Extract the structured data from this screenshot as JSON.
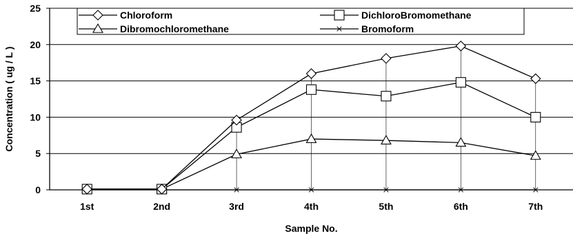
{
  "chart_data": {
    "type": "line",
    "title": "",
    "xlabel": "Sample No.",
    "ylabel": "Concentration ( ug / L )",
    "categories": [
      "1st",
      "2nd",
      "3rd",
      "4th",
      "5th",
      "6th",
      "7th"
    ],
    "ylim": [
      0,
      25
    ],
    "yticks": [
      0,
      5,
      10,
      15,
      20,
      25
    ],
    "grid": "horizontal",
    "legend_position": "top",
    "series": [
      {
        "name": "Chloroform",
        "marker": "diamond",
        "values": [
          0.1,
          0.1,
          9.6,
          16.0,
          18.1,
          19.8,
          15.3
        ]
      },
      {
        "name": "DichloroBromomethane",
        "marker": "square",
        "values": [
          0.1,
          0.1,
          8.6,
          13.8,
          12.9,
          14.8,
          10.0
        ]
      },
      {
        "name": "Dibromochloromethane",
        "marker": "triangle",
        "values": [
          0.1,
          0.1,
          4.9,
          7.0,
          6.8,
          6.5,
          4.7
        ]
      },
      {
        "name": "Bromoform",
        "marker": "x",
        "values": [
          0.0,
          0.0,
          0.0,
          0.0,
          0.0,
          0.0,
          0.0
        ]
      }
    ]
  }
}
